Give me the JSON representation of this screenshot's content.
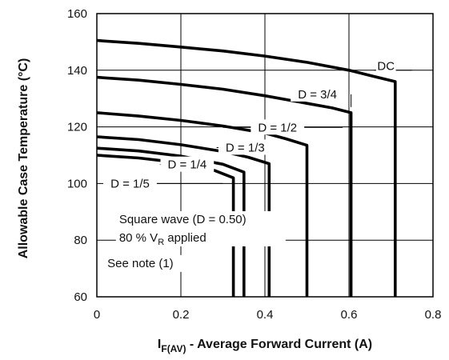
{
  "chart_data": {
    "type": "line",
    "xlabel_main": "I",
    "xlabel_sub": "F(AV)",
    "xlabel_rest": " - Average Forward Current (A)",
    "ylabel": "Allowable Case Temperature (°C)",
    "xlim": [
      0,
      0.8
    ],
    "ylim": [
      60,
      160
    ],
    "grid": true,
    "x_ticks": [
      0,
      0.2,
      0.4,
      0.6,
      0.8
    ],
    "x_tick_labels": [
      "0",
      "0.2",
      "0.4",
      "0.6",
      "0.8"
    ],
    "y_ticks": [
      60,
      80,
      100,
      120,
      140,
      160
    ],
    "y_tick_labels": [
      "60",
      "80",
      "100",
      "120",
      "140",
      "160"
    ],
    "series": [
      {
        "name": "DC",
        "x": [
          0,
          0.1,
          0.2,
          0.3,
          0.4,
          0.5,
          0.6,
          0.66,
          0.71
        ],
        "y": [
          150.5,
          149.5,
          148.2,
          146.8,
          145.0,
          142.8,
          140.0,
          137.8,
          136.0
        ],
        "end_x": 0.71
      },
      {
        "name": "D = 3/4",
        "x": [
          0,
          0.1,
          0.2,
          0.3,
          0.4,
          0.5,
          0.56,
          0.605
        ],
        "y": [
          137.5,
          136.5,
          135.0,
          133.3,
          131.0,
          128.3,
          126.7,
          125.0
        ],
        "end_x": 0.605
      },
      {
        "name": "D = 1/2",
        "x": [
          0,
          0.1,
          0.2,
          0.3,
          0.4,
          0.45,
          0.5
        ],
        "y": [
          125.0,
          123.8,
          122.3,
          120.3,
          117.8,
          115.8,
          113.5
        ],
        "end_x": 0.5
      },
      {
        "name": "D = 1/3",
        "x": [
          0,
          0.1,
          0.2,
          0.3,
          0.36,
          0.41
        ],
        "y": [
          116.5,
          115.5,
          113.7,
          111.3,
          109.3,
          107.0
        ],
        "end_x": 0.41
      },
      {
        "name": "D = 1/4",
        "x": [
          0,
          0.1,
          0.2,
          0.3,
          0.35
        ],
        "y": [
          112.5,
          111.5,
          109.7,
          106.8,
          104.0
        ],
        "end_x": 0.35
      },
      {
        "name": "D = 1/5",
        "x": [
          0,
          0.1,
          0.2,
          0.28,
          0.325
        ],
        "y": [
          110.0,
          109.0,
          107.3,
          104.6,
          102.0
        ],
        "end_x": 0.325
      }
    ],
    "series_labels": [
      {
        "text": "DC",
        "x": 0.688,
        "y": 141.5,
        "leader": [
          [
            0.66,
            140.0
          ],
          [
            0.75,
            140.0
          ]
        ]
      },
      {
        "text": "D = 3/4",
        "x": 0.525,
        "y": 131.5,
        "leader": [
          [
            0.605,
            127.0
          ],
          [
            0.605,
            131.5
          ]
        ]
      },
      {
        "text": "D = 1/2",
        "x": 0.43,
        "y": 119.8,
        "leader": [
          [
            0.3,
            119.8
          ],
          [
            0.585,
            119.8
          ]
        ]
      },
      {
        "text": "D = 1/3",
        "x": 0.353,
        "y": 112.7,
        "leader": [
          [
            0.285,
            112.7
          ],
          [
            0.385,
            112.7
          ]
        ]
      },
      {
        "text": "D = 1/4",
        "x": 0.215,
        "y": 106.7,
        "leader": [
          [
            0.15,
            106.7
          ],
          [
            0.27,
            106.7
          ]
        ]
      },
      {
        "text": "D = 1/5",
        "x": 0.079,
        "y": 100.0,
        "leader": [
          [
            0.02,
            100.0
          ],
          [
            0.3,
            100.0
          ]
        ]
      }
    ],
    "annotations": [
      {
        "text": "Square wave (D = 0.50)",
        "x": 0.053,
        "y": 86.0
      },
      {
        "text_main": "80 % V",
        "text_sub": "R",
        "text_rest": " applied",
        "x": 0.053,
        "y": 79.5
      },
      {
        "text": "See note (1)",
        "x": 0.025,
        "y": 70.5
      }
    ]
  }
}
